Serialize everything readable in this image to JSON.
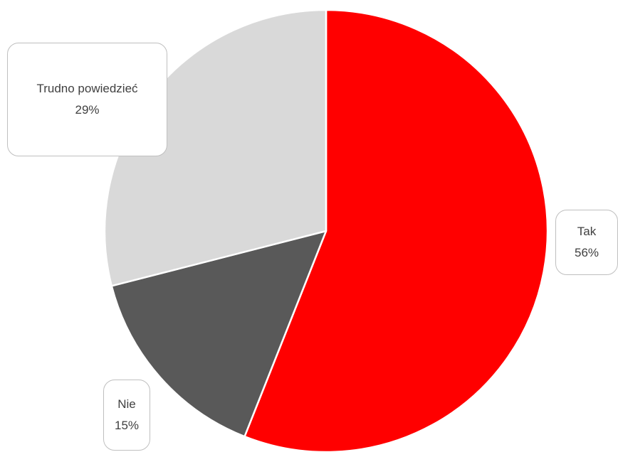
{
  "chart_data": {
    "type": "pie",
    "title": "",
    "start_angle_deg": 0,
    "direction": "clockwise",
    "slices": [
      {
        "label": "Tak",
        "value": 56,
        "value_label": "56%",
        "color": "#FF0000"
      },
      {
        "label": "Nie",
        "value": 15,
        "value_label": "15%",
        "color": "#595959"
      },
      {
        "label": "Trudno powiedzieć",
        "value": 29,
        "value_label": "29%",
        "color": "#D9D9D9"
      }
    ],
    "slice_border_color": "#FFFFFF",
    "data_labels": "callout boxes with category name and percentage",
    "legend": "none"
  }
}
